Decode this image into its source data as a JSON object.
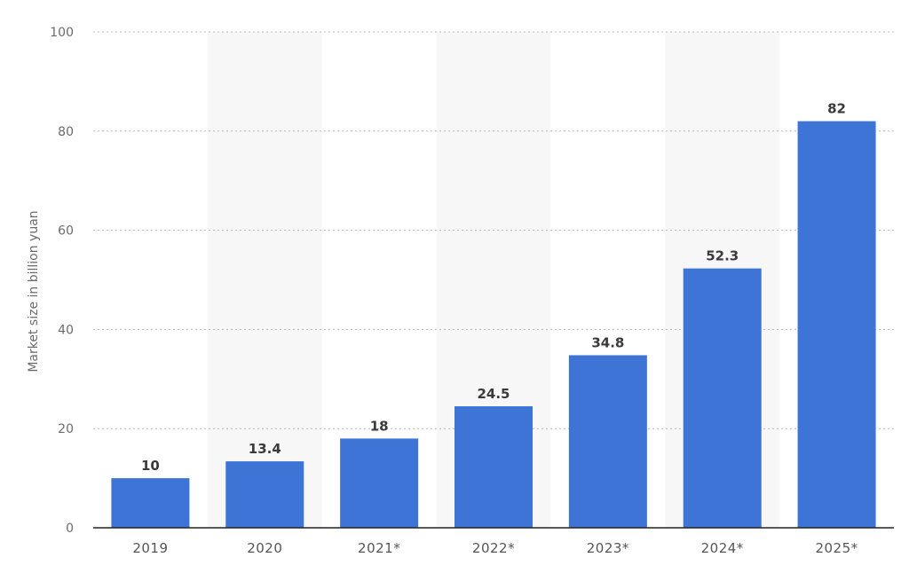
{
  "chart_data": {
    "type": "bar",
    "categories": [
      "2019",
      "2020",
      "2021*",
      "2022*",
      "2023*",
      "2024*",
      "2025*"
    ],
    "values": [
      10,
      13.4,
      18,
      24.5,
      34.8,
      52.3,
      82
    ],
    "value_labels": [
      "10",
      "13.4",
      "18",
      "24.5",
      "34.8",
      "52.3",
      "82"
    ],
    "title": "",
    "xlabel": "",
    "ylabel": "Market size in billion yuan",
    "ylim": [
      0,
      100
    ],
    "yticks": [
      0,
      20,
      40,
      60,
      80,
      100
    ],
    "ytick_labels": [
      "0",
      "20",
      "40",
      "60",
      "80",
      "100"
    ],
    "grid": true,
    "legend": "none",
    "bar_color": "#3d74d6",
    "band_color": "#f7f7f7",
    "grid_color": "#b5b5b5"
  }
}
